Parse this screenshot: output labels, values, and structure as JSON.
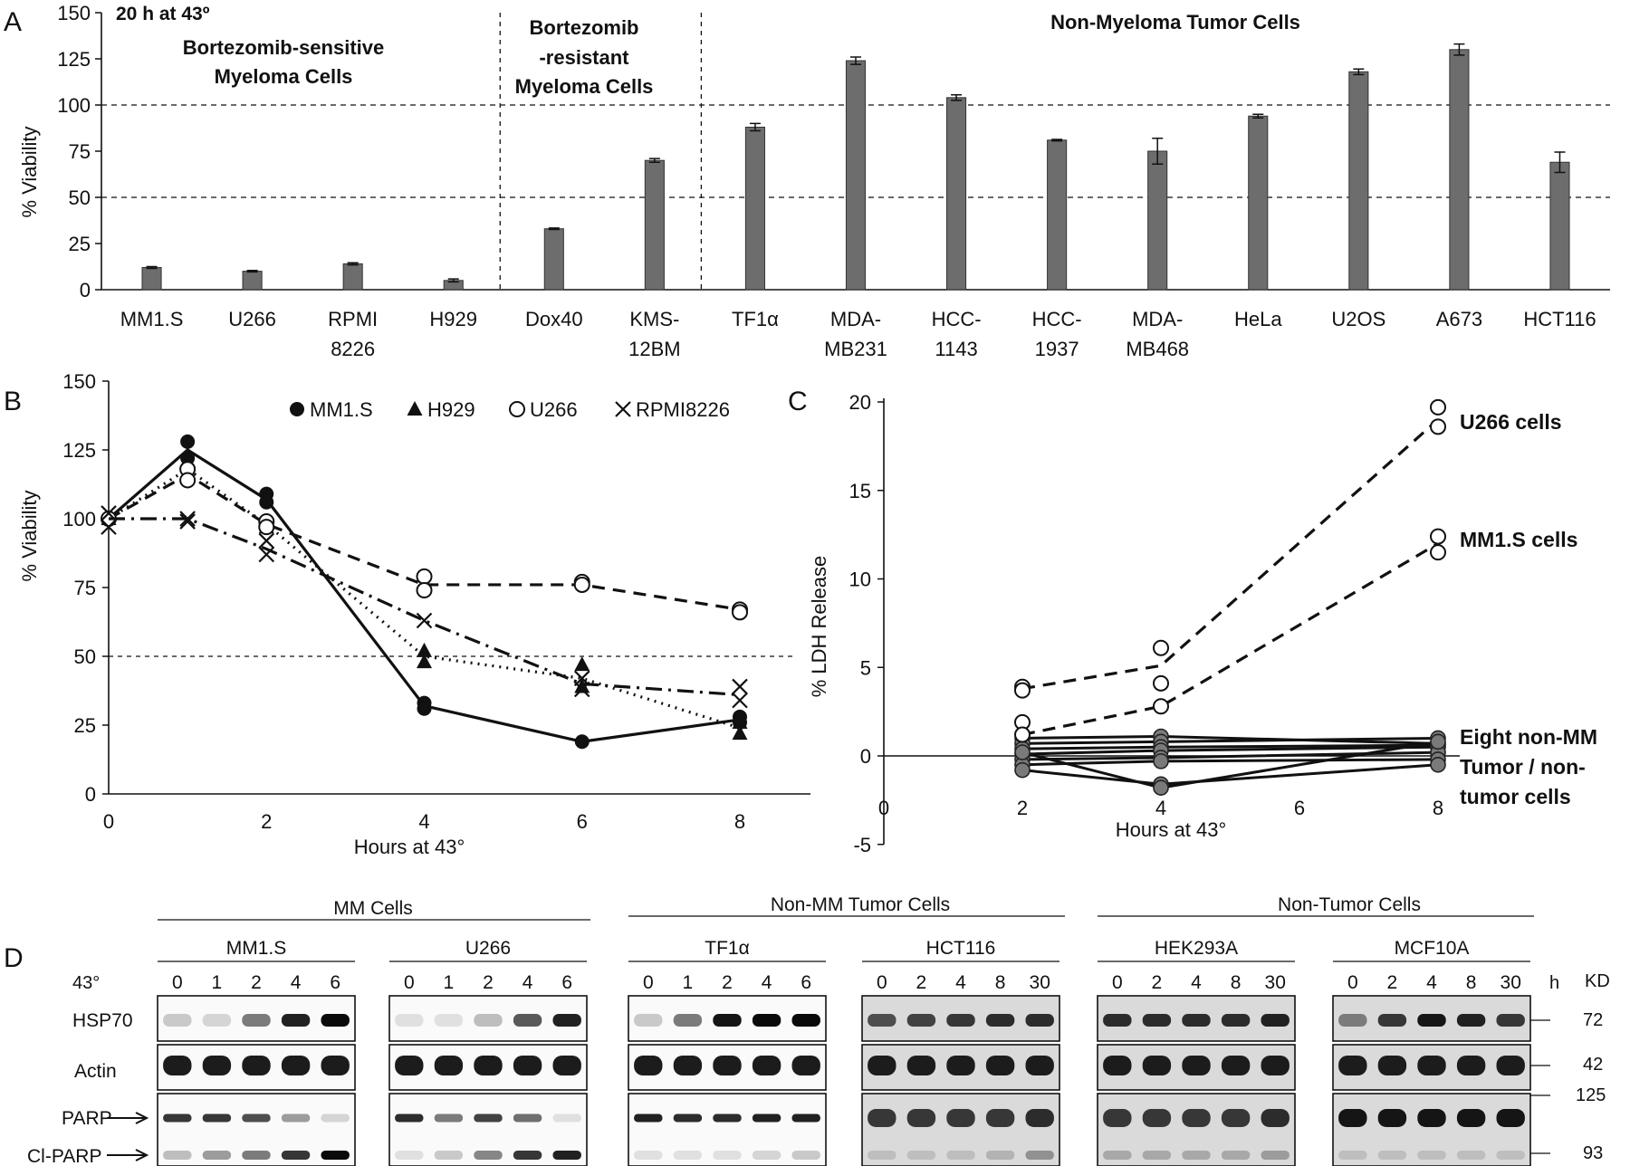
{
  "panel_labels": {
    "a": "A",
    "b": "B",
    "c": "C",
    "d": "D"
  },
  "chart_data": [
    {
      "id": "A",
      "type": "bar",
      "ylabel": "% Viability",
      "ylim": [
        0,
        150
      ],
      "yticks": [
        0,
        25,
        50,
        75,
        100,
        125,
        150
      ],
      "reference_lines": [
        50,
        100
      ],
      "annotations": {
        "condition": "20 h at 43º",
        "group1": [
          "Bortezomib-sensitive",
          "Myeloma Cells"
        ],
        "group2": [
          "Bortezomib",
          "-resistant",
          "Myeloma Cells"
        ],
        "group3": [
          "Non-Myeloma Tumor Cells"
        ]
      },
      "categories": [
        [
          "MM1.S"
        ],
        [
          "U266"
        ],
        [
          "RPMI",
          "8226"
        ],
        [
          "H929"
        ],
        [
          "Dox40"
        ],
        [
          "KMS-",
          "12BM"
        ],
        [
          "TF1α"
        ],
        [
          "MDA-",
          "MB231"
        ],
        [
          "HCC-",
          "1143"
        ],
        [
          "HCC-",
          "1937"
        ],
        [
          "MDA-",
          "MB468"
        ],
        [
          "HeLa"
        ],
        [
          "U2OS"
        ],
        [
          "A673"
        ],
        [
          "HCT116"
        ]
      ],
      "values": [
        12,
        10,
        14,
        5,
        33,
        70,
        88,
        124,
        104,
        81,
        75,
        94,
        118,
        130,
        69
      ],
      "errors": [
        0.5,
        0.4,
        0.6,
        0.8,
        0.4,
        1.0,
        2.0,
        2.0,
        1.5,
        0.4,
        7.0,
        1.0,
        1.5,
        3.0,
        5.5
      ],
      "colors": {
        "bar": "#6d6d6d"
      }
    },
    {
      "id": "B",
      "type": "line",
      "xlabel": "Hours at 43°",
      "ylabel": "% Viability",
      "xlim": [
        0,
        8
      ],
      "ylim": [
        0,
        150
      ],
      "xticks": [
        0,
        2,
        4,
        6,
        8
      ],
      "yticks": [
        0,
        25,
        50,
        75,
        100,
        125,
        150
      ],
      "reference_line": 50,
      "legend": "top",
      "series": [
        {
          "name": "MM1.S",
          "marker": "filled-circle",
          "dash": "solid",
          "x": [
            0,
            1,
            2,
            4,
            6,
            8
          ],
          "y": [
            100,
            125,
            107,
            32,
            19,
            27
          ],
          "points": [
            [
              0,
              100
            ],
            [
              1,
              128
            ],
            [
              1,
              122
            ],
            [
              2,
              109
            ],
            [
              2,
              106
            ],
            [
              4,
              33
            ],
            [
              4,
              31
            ],
            [
              6,
              19
            ],
            [
              8,
              28
            ],
            [
              8,
              26
            ]
          ]
        },
        {
          "name": "H929",
          "marker": "filled-triangle",
          "dash": "dotted",
          "x": [
            0,
            1,
            2,
            4,
            6,
            8
          ],
          "y": [
            100,
            118,
            98,
            50,
            42,
            24
          ],
          "points": [
            [
              0,
              100
            ],
            [
              1,
              121
            ],
            [
              1,
              116
            ],
            [
              2,
              99
            ],
            [
              2,
              97
            ],
            [
              4,
              52
            ],
            [
              4,
              48
            ],
            [
              6,
              47
            ],
            [
              6,
              39
            ],
            [
              8,
              26
            ],
            [
              8,
              22
            ]
          ]
        },
        {
          "name": "U266",
          "marker": "open-circle",
          "dash": "dashed",
          "x": [
            0,
            1,
            2,
            4,
            6,
            8
          ],
          "y": [
            100,
            116,
            98,
            76,
            76,
            67
          ],
          "points": [
            [
              0,
              100
            ],
            [
              1,
              118
            ],
            [
              1,
              114
            ],
            [
              2,
              99
            ],
            [
              2,
              97
            ],
            [
              4,
              79
            ],
            [
              4,
              74
            ],
            [
              6,
              77
            ],
            [
              6,
              76
            ],
            [
              8,
              67
            ],
            [
              8,
              66
            ]
          ]
        },
        {
          "name": "RPMI8226",
          "marker": "x",
          "dash": "dash-dot",
          "x": [
            0,
            1,
            2,
            4,
            6,
            8
          ],
          "y": [
            100,
            100,
            89,
            63,
            40,
            36
          ],
          "points": [
            [
              0,
              102
            ],
            [
              0,
              97
            ],
            [
              1,
              100
            ],
            [
              1,
              99
            ],
            [
              2,
              92
            ],
            [
              2,
              87
            ],
            [
              4,
              63
            ],
            [
              6,
              42
            ],
            [
              6,
              38
            ],
            [
              8,
              39
            ],
            [
              8,
              34
            ]
          ]
        }
      ]
    },
    {
      "id": "C",
      "type": "line",
      "xlabel": "Hours at 43°",
      "ylabel": "% LDH Release",
      "xlim": [
        0,
        8
      ],
      "ylim": [
        -5,
        20
      ],
      "xticks": [
        0,
        2,
        4,
        6,
        8
      ],
      "yticks": [
        -5,
        0,
        5,
        10,
        15,
        20
      ],
      "series": [
        {
          "name": "U266 cells",
          "marker": "open-circle",
          "dash": "dashed",
          "x": [
            2,
            4,
            8
          ],
          "y": [
            3.8,
            5.1,
            19
          ],
          "points": [
            [
              2,
              3.9
            ],
            [
              2,
              3.7
            ],
            [
              4,
              6.1
            ],
            [
              4,
              4.1
            ],
            [
              8,
              19.7
            ],
            [
              8,
              18.6
            ]
          ]
        },
        {
          "name": "MM1.S cells",
          "marker": "open-circle",
          "dash": "dashed",
          "x": [
            2,
            4,
            8
          ],
          "y": [
            1.2,
            2.8,
            12
          ],
          "points": [
            [
              2,
              1.9
            ],
            [
              2,
              1.2
            ],
            [
              4,
              2.8
            ],
            [
              8,
              12.4
            ],
            [
              8,
              11.5
            ]
          ]
        },
        {
          "name": "Eight non-MM Tumor / non-tumor cells",
          "marker": "gray-circle",
          "dash": "solid",
          "lines": [
            {
              "x": [
                2,
                4,
                8
              ],
              "y": [
                1.0,
                1.1,
                0.7
              ]
            },
            {
              "x": [
                2,
                4,
                8
              ],
              "y": [
                0.7,
                0.8,
                1.0
              ]
            },
            {
              "x": [
                2,
                4,
                8
              ],
              "y": [
                0.4,
                0.5,
                0.6
              ]
            },
            {
              "x": [
                2,
                4,
                8
              ],
              "y": [
                0.1,
                0.3,
                0.5
              ]
            },
            {
              "x": [
                2,
                4,
                8
              ],
              "y": [
                -0.2,
                -0.1,
                0.2
              ]
            },
            {
              "x": [
                2,
                4,
                8
              ],
              "y": [
                -0.5,
                -0.3,
                -0.2
              ]
            },
            {
              "x": [
                2,
                4,
                8
              ],
              "y": [
                -0.8,
                -1.6,
                -0.5
              ]
            },
            {
              "x": [
                2,
                4,
                8
              ],
              "y": [
                0.2,
                -1.8,
                0.8
              ]
            }
          ]
        }
      ],
      "labels": [
        "U266 cells",
        "MM1.S cells",
        "Eight non-MM",
        "Tumor / non-",
        "tumor cells"
      ]
    }
  ],
  "blots": {
    "groups": [
      "MM Cells",
      "Non-MM Tumor Cells",
      "Non-Tumor Cells"
    ],
    "temp_label": "43°",
    "unit_h": "h",
    "kd_label": "KD",
    "panels": [
      {
        "name": "MM1.S",
        "times": [
          "0",
          "1",
          "2",
          "4",
          "6"
        ],
        "hsp70": [
          0.15,
          0.1,
          0.5,
          0.9,
          1.0
        ],
        "parp": [
          0.8,
          0.8,
          0.7,
          0.35,
          0.1
        ],
        "clparp": [
          0.2,
          0.35,
          0.5,
          0.8,
          1.0
        ],
        "style": "white"
      },
      {
        "name": "U266",
        "times": [
          "0",
          "1",
          "2",
          "4",
          "6"
        ],
        "hsp70": [
          0.05,
          0.05,
          0.2,
          0.65,
          0.9
        ],
        "parp": [
          0.85,
          0.5,
          0.75,
          0.55,
          0.05
        ],
        "clparp": [
          0.05,
          0.15,
          0.45,
          0.8,
          0.9
        ],
        "style": "white"
      },
      {
        "name": "TF1α",
        "times": [
          "0",
          "1",
          "2",
          "4",
          "6"
        ],
        "hsp70": [
          0.15,
          0.5,
          0.95,
          1.0,
          1.0
        ],
        "parp": [
          0.9,
          0.85,
          0.85,
          0.9,
          0.9
        ],
        "clparp": [
          0.05,
          0.05,
          0.05,
          0.1,
          0.15
        ],
        "style": "white"
      },
      {
        "name": "HCT116",
        "times": [
          "0",
          "2",
          "4",
          "8",
          "30"
        ],
        "hsp70": [
          0.7,
          0.75,
          0.8,
          0.85,
          0.85
        ],
        "parp": [
          0.8,
          0.8,
          0.8,
          0.8,
          0.85
        ],
        "clparp": [
          0.2,
          0.2,
          0.2,
          0.25,
          0.4
        ],
        "style": "gray"
      },
      {
        "name": "HEK293A",
        "times": [
          "0",
          "2",
          "4",
          "8",
          "30"
        ],
        "hsp70": [
          0.85,
          0.85,
          0.85,
          0.85,
          0.9
        ],
        "parp": [
          0.8,
          0.8,
          0.8,
          0.8,
          0.85
        ],
        "clparp": [
          0.3,
          0.3,
          0.3,
          0.3,
          0.35
        ],
        "style": "gray"
      },
      {
        "name": "MCF10A",
        "times": [
          "0",
          "2",
          "4",
          "8",
          "30"
        ],
        "hsp70": [
          0.5,
          0.8,
          0.95,
          0.9,
          0.8
        ],
        "parp": [
          0.95,
          0.95,
          0.95,
          0.95,
          0.95
        ],
        "clparp": [
          0.2,
          0.2,
          0.2,
          0.2,
          0.2
        ],
        "style": "gray"
      }
    ],
    "row_labels": [
      "HSP70",
      "Actin",
      "PARP",
      "Cl-PARP"
    ],
    "kd_values": [
      "72",
      "42",
      "125",
      "93"
    ]
  }
}
